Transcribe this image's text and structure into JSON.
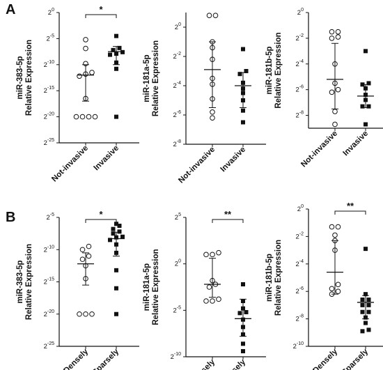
{
  "panels": [
    {
      "letter": "A"
    },
    {
      "letter": "B"
    }
  ],
  "chart_data": [
    {
      "type": "scatter",
      "panel": "A",
      "ylabel": [
        "miR-383-5p",
        "Relative Expression"
      ],
      "yscale": "log2",
      "ylim": [
        -25,
        0
      ],
      "yticks": [
        0,
        -5,
        -10,
        -15,
        -20,
        -25
      ],
      "categories": [
        "Not-invasive",
        "Invasive"
      ],
      "significance": "*",
      "series": [
        {
          "marker": "open-circle",
          "values": [
            -5.2,
            -6.9,
            -9.8,
            -11.5,
            -11.8,
            -12.2,
            -16.5,
            -20,
            -20,
            -20,
            -20
          ],
          "median": -12,
          "iqr": [
            -17,
            -10
          ]
        },
        {
          "marker": "filled-square",
          "values": [
            -4.5,
            -6.8,
            -7.2,
            -7.6,
            -7.9,
            -8.1,
            -9.6,
            -10.8,
            -20
          ],
          "median": -7.5,
          "iqr": [
            -10,
            -6.5
          ]
        }
      ]
    },
    {
      "type": "scatter",
      "panel": "A",
      "ylabel": [
        "miR-181a-5p",
        "Relative Expression"
      ],
      "yscale": "log2",
      "ylim": [
        -8,
        1
      ],
      "yticks": [
        0,
        -2,
        -4,
        -6,
        -8
      ],
      "categories": [
        "Not-invasive",
        "Invasive"
      ],
      "significance": "",
      "series": [
        {
          "marker": "open-circle",
          "values": [
            0.8,
            0.8,
            -1.0,
            -1.4,
            -2.2,
            -3.5,
            -3.9,
            -4.9,
            -5.8,
            -6.2
          ],
          "median": -2.9,
          "iqr": [
            -5.5,
            -1
          ]
        },
        {
          "marker": "filled-square",
          "values": [
            -1.5,
            -3.0,
            -3.2,
            -3.8,
            -4.2,
            -4.5,
            -5.0,
            -5.7,
            -6.5
          ],
          "median": -4,
          "iqr": [
            -5.5,
            -3.1
          ]
        }
      ]
    },
    {
      "type": "scatter",
      "panel": "A",
      "ylabel": [
        "miR-181b-5p",
        "Relative Expression"
      ],
      "yscale": "log2",
      "ylim": [
        -9,
        0
      ],
      "yticks": [
        0,
        -2,
        -4,
        -6,
        -8
      ],
      "categories": [
        "Not-invasive",
        "Invasive"
      ],
      "significance": "",
      "series": [
        {
          "marker": "open-circle",
          "values": [
            -1.5,
            -1.5,
            -1.9,
            -2.0,
            -4.0,
            -5.5,
            -6.0,
            -6.2,
            -7.7,
            -8.7
          ],
          "median": -5.2,
          "iqr": [
            -7.5,
            -2.4
          ]
        },
        {
          "marker": "filled-square",
          "values": [
            -3.0,
            -5.5,
            -5.6,
            -5.9,
            -6.4,
            -6.8,
            -7.3,
            -7.3,
            -8.7
          ],
          "median": -6.5,
          "iqr": [
            -7.4,
            -5.6
          ]
        }
      ]
    },
    {
      "type": "scatter",
      "panel": "B",
      "ylabel": [
        "miR-383-5p",
        "Relative Expression"
      ],
      "yscale": "log2",
      "ylim": [
        -25,
        -5
      ],
      "yticks": [
        -5,
        -10,
        -15,
        -20,
        -25
      ],
      "categories": [
        "Densely",
        "Sparsely"
      ],
      "significance": "*",
      "series": [
        {
          "marker": "open-circle",
          "values": [
            -9.5,
            -10.0,
            -11.0,
            -11.5,
            -12.5,
            -14.5,
            -20,
            -20,
            -20
          ],
          "median": -12.2,
          "iqr": [
            -15.5,
            -10.5
          ]
        },
        {
          "marker": "filled-square",
          "values": [
            -6.0,
            -6.3,
            -6.8,
            -7.2,
            -7.5,
            -8.0,
            -8.1,
            -8.5,
            -9.2,
            -10.5,
            -13.2,
            -16.0,
            -20
          ],
          "median": -8.3,
          "iqr": [
            -11,
            -7.3
          ]
        }
      ]
    },
    {
      "type": "scatter",
      "panel": "B",
      "ylabel": [
        "miR-181a-5p",
        "Relative Expression"
      ],
      "yscale": "log2",
      "ylim": [
        -10,
        5
      ],
      "yticks": [
        5,
        0,
        -5,
        -10
      ],
      "categories": [
        "Densely",
        "Sparsely"
      ],
      "significance": "**",
      "series": [
        {
          "marker": "open-circle",
          "values": [
            1.0,
            1.2,
            1.0,
            -1.8,
            -2.2,
            -2.5,
            -3.8,
            -4.0,
            -4.0
          ],
          "median": -2.2,
          "iqr": [
            -3.6,
            0.6
          ]
        },
        {
          "marker": "filled-square",
          "values": [
            -2.2,
            -4.0,
            -4.8,
            -5.2,
            -5.3,
            -6.0,
            -6.8,
            -7.6,
            -8.6,
            -9.4
          ],
          "median": -5.9,
          "iqr": [
            -7.8,
            -3.8
          ]
        }
      ]
    },
    {
      "type": "scatter",
      "panel": "B",
      "ylabel": [
        "miR-181b-5p",
        "Relative Expression"
      ],
      "yscale": "log2",
      "ylim": [
        -10,
        0
      ],
      "yticks": [
        0,
        -2,
        -4,
        -6,
        -8,
        -10
      ],
      "categories": [
        "Densely",
        "Sparsely"
      ],
      "significance": "**",
      "series": [
        {
          "marker": "open-circle",
          "values": [
            -1.3,
            -1.3,
            -1.9,
            -2.3,
            -3.0,
            -5.5,
            -5.8,
            -6.0,
            -6.2
          ],
          "median": -4.6,
          "iqr": [
            -6.2,
            -2.3
          ]
        },
        {
          "marker": "filled-square",
          "values": [
            -2.9,
            -6.2,
            -6.6,
            -6.6,
            -7.0,
            -7.0,
            -7.5,
            -7.5,
            -7.9,
            -8.3,
            -8.8,
            -8.9
          ],
          "median": -6.8,
          "iqr": [
            -8,
            -6.3
          ]
        }
      ]
    }
  ]
}
